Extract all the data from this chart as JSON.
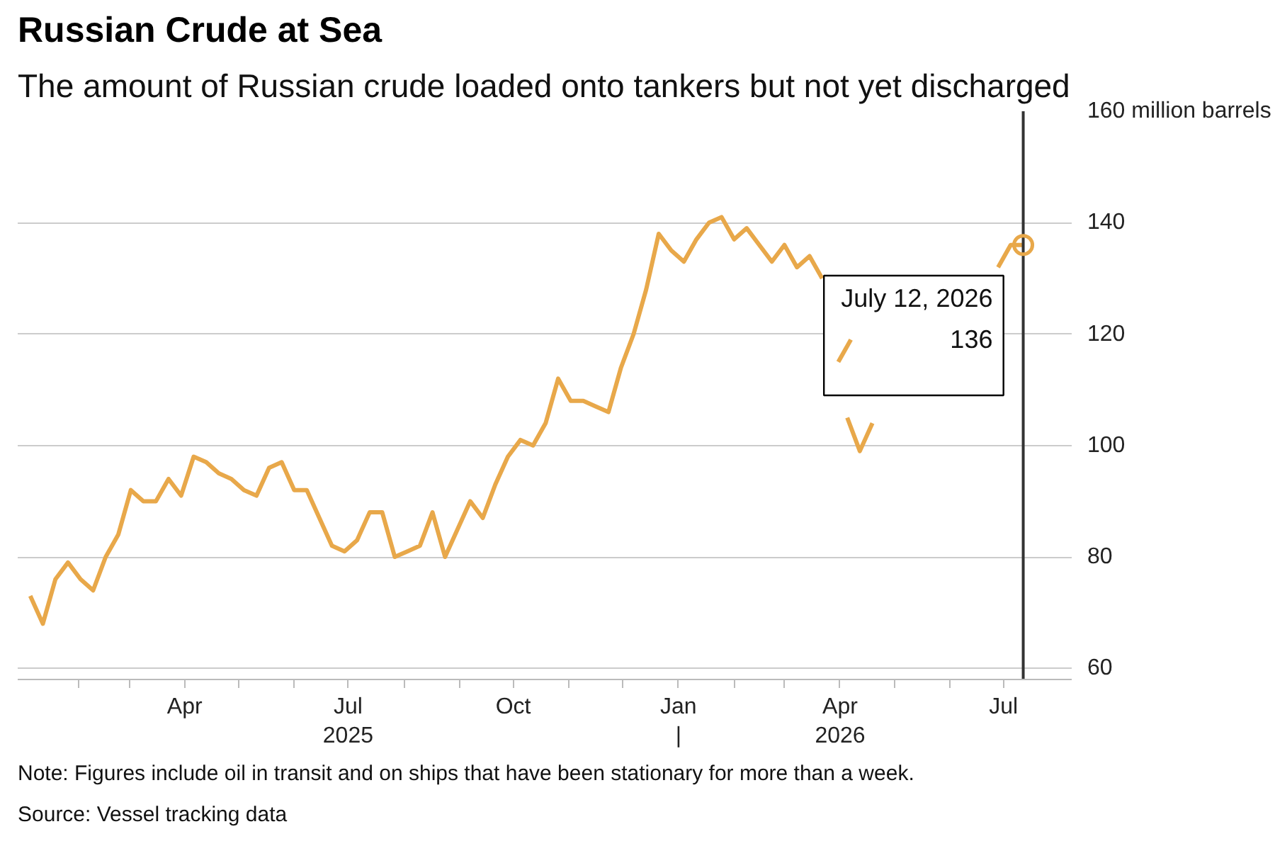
{
  "chart_data": {
    "type": "line",
    "title": "Russian Crude at Sea",
    "subtitle": "The amount of Russian crude loaded onto tankers but not yet discharged",
    "x": [
      "2025-01-05",
      "2025-01-12",
      "2025-01-19",
      "2025-01-26",
      "2025-02-02",
      "2025-02-09",
      "2025-02-16",
      "2025-02-23",
      "2025-03-02",
      "2025-03-09",
      "2025-03-16",
      "2025-03-23",
      "2025-03-30",
      "2025-04-06",
      "2025-04-13",
      "2025-04-20",
      "2025-04-27",
      "2025-05-04",
      "2025-05-11",
      "2025-05-18",
      "2025-05-25",
      "2025-06-01",
      "2025-06-08",
      "2025-06-15",
      "2025-06-22",
      "2025-06-29",
      "2025-07-06",
      "2025-07-13",
      "2025-07-20",
      "2025-07-27",
      "2025-08-03",
      "2025-08-10",
      "2025-08-17",
      "2025-08-24",
      "2025-08-31",
      "2025-09-07",
      "2025-09-14",
      "2025-09-21",
      "2025-09-28",
      "2025-10-05",
      "2025-10-12",
      "2025-10-19",
      "2025-10-26",
      "2025-11-02",
      "2025-11-09",
      "2025-11-16",
      "2025-11-23",
      "2025-11-30",
      "2025-12-07",
      "2025-12-14",
      "2025-12-21",
      "2025-12-28",
      "2026-01-04",
      "2026-01-11",
      "2026-01-18",
      "2026-01-25",
      "2026-02-01",
      "2026-02-08",
      "2026-02-15",
      "2026-02-22",
      "2026-03-01",
      "2026-03-08",
      "2026-03-15",
      "2026-03-22",
      "2026-03-29",
      "2026-04-05",
      "2026-04-12",
      "2026-04-19",
      "2026-04-26",
      "2026-05-03",
      "2026-05-10",
      "2026-05-17",
      "2026-05-24",
      "2026-05-31",
      "2026-06-07",
      "2026-06-14",
      "2026-06-21",
      "2026-06-28",
      "2026-07-05",
      "2026-07-12"
    ],
    "series": [
      {
        "color": "#e8a84a",
        "values": [
          73,
          68,
          76,
          79,
          76,
          74,
          80,
          84,
          92,
          90,
          90,
          94,
          91,
          98,
          97,
          95,
          94,
          92,
          91,
          96,
          97,
          92,
          92,
          87,
          82,
          81,
          83,
          88,
          88,
          80,
          81,
          82,
          88,
          80,
          85,
          90,
          87,
          93,
          98,
          101,
          100,
          104,
          112,
          108,
          108,
          107,
          106,
          114,
          120,
          128,
          138,
          135,
          133,
          137,
          140,
          141,
          137,
          139,
          136,
          133,
          136,
          132,
          134,
          130,
          null,
          105,
          99,
          104,
          null,
          null,
          null,
          null,
          null,
          null,
          null,
          null,
          null,
          132,
          136,
          136
        ]
      }
    ],
    "xlim": [
      "2024-12-29",
      "2026-08-08"
    ],
    "xticks": [
      {
        "value": "2025-02-01",
        "label": null
      },
      {
        "value": "2025-03-01",
        "label": null
      },
      {
        "value": "2025-04-01",
        "label": "Apr"
      },
      {
        "value": "2025-05-01",
        "label": null
      },
      {
        "value": "2025-06-01",
        "label": null
      },
      {
        "value": "2025-07-01",
        "label": "Jul\n2025"
      },
      {
        "value": "2025-08-01",
        "label": null
      },
      {
        "value": "2025-09-01",
        "label": null
      },
      {
        "value": "2025-10-01",
        "label": "Oct"
      },
      {
        "value": "2025-11-01",
        "label": null
      },
      {
        "value": "2025-12-01",
        "label": null
      },
      {
        "value": "2026-01-01",
        "label": "Jan\n|"
      },
      {
        "value": "2026-02-01",
        "label": null
      },
      {
        "value": "2026-03-01",
        "label": null
      },
      {
        "value": "2026-04-01",
        "label": "Apr\n2026"
      },
      {
        "value": "2026-05-01",
        "label": null
      },
      {
        "value": "2026-06-01",
        "label": null
      },
      {
        "value": "2026-07-01",
        "label": "Jul"
      }
    ],
    "ylim": [
      58,
      160
    ],
    "yticks": [
      60,
      80,
      100,
      120,
      140,
      {
        "value": 160,
        "label": "160 million barrels"
      }
    ],
    "grid": "y",
    "line_style": "solid",
    "marker": "none",
    "ref_lines": [
      {
        "axis": "x",
        "value": "2026-07-12",
        "label": null,
        "color": "#333333"
      }
    ],
    "annotations": [
      {
        "text": "July 12, 2026\n136",
        "x": "2026-07-12",
        "y": 136
      },
      "Note: Figures include oil in transit and on ships that have been stationary for more than a week.",
      "Source: Vessel tracking data"
    ]
  }
}
